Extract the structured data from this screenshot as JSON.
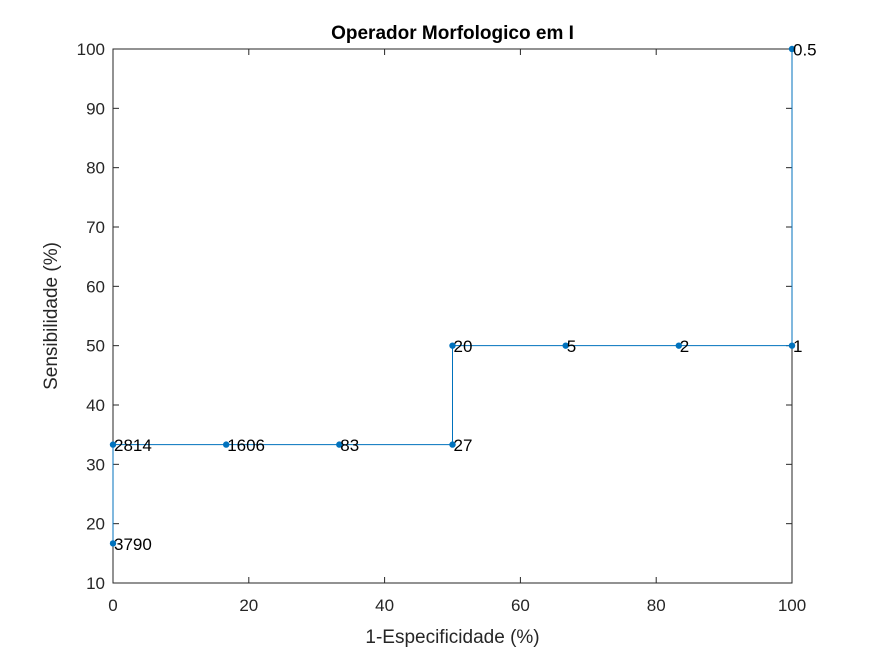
{
  "chart_data": {
    "type": "line",
    "title": "Operador Morfologico em I",
    "xlabel": "1-Especificidade (%)",
    "ylabel": "Sensibilidade (%)",
    "xlim": [
      0,
      100
    ],
    "ylim": [
      10,
      100
    ],
    "xticks": [
      0,
      20,
      40,
      60,
      80,
      100
    ],
    "yticks": [
      10,
      20,
      30,
      40,
      50,
      60,
      70,
      80,
      90,
      100
    ],
    "grid": false,
    "line_color": "#0072BD",
    "series": [
      {
        "x": [
          0,
          0,
          16.67,
          33.33,
          50,
          50,
          66.67,
          83.33,
          100,
          100
        ],
        "y": [
          16.67,
          33.33,
          33.33,
          33.33,
          33.33,
          50,
          50,
          50,
          50,
          100
        ],
        "point_labels": [
          "3790",
          "2814",
          "1606",
          "83",
          "27",
          "20",
          "5",
          "2",
          "1",
          "0.5"
        ]
      }
    ]
  }
}
